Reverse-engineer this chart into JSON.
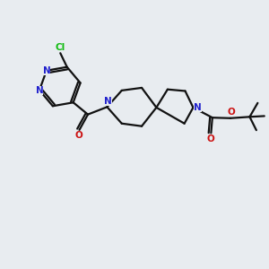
{
  "bg_color": "#e8ecf0",
  "bond_color": "#111111",
  "n_color": "#2020cc",
  "o_color": "#cc1111",
  "cl_color": "#11bb11",
  "lw": 1.6,
  "fs": 7.5,
  "figsize": [
    3.0,
    3.0
  ],
  "dpi": 100,
  "xlim": [
    0,
    10
  ],
  "ylim": [
    0,
    10
  ]
}
